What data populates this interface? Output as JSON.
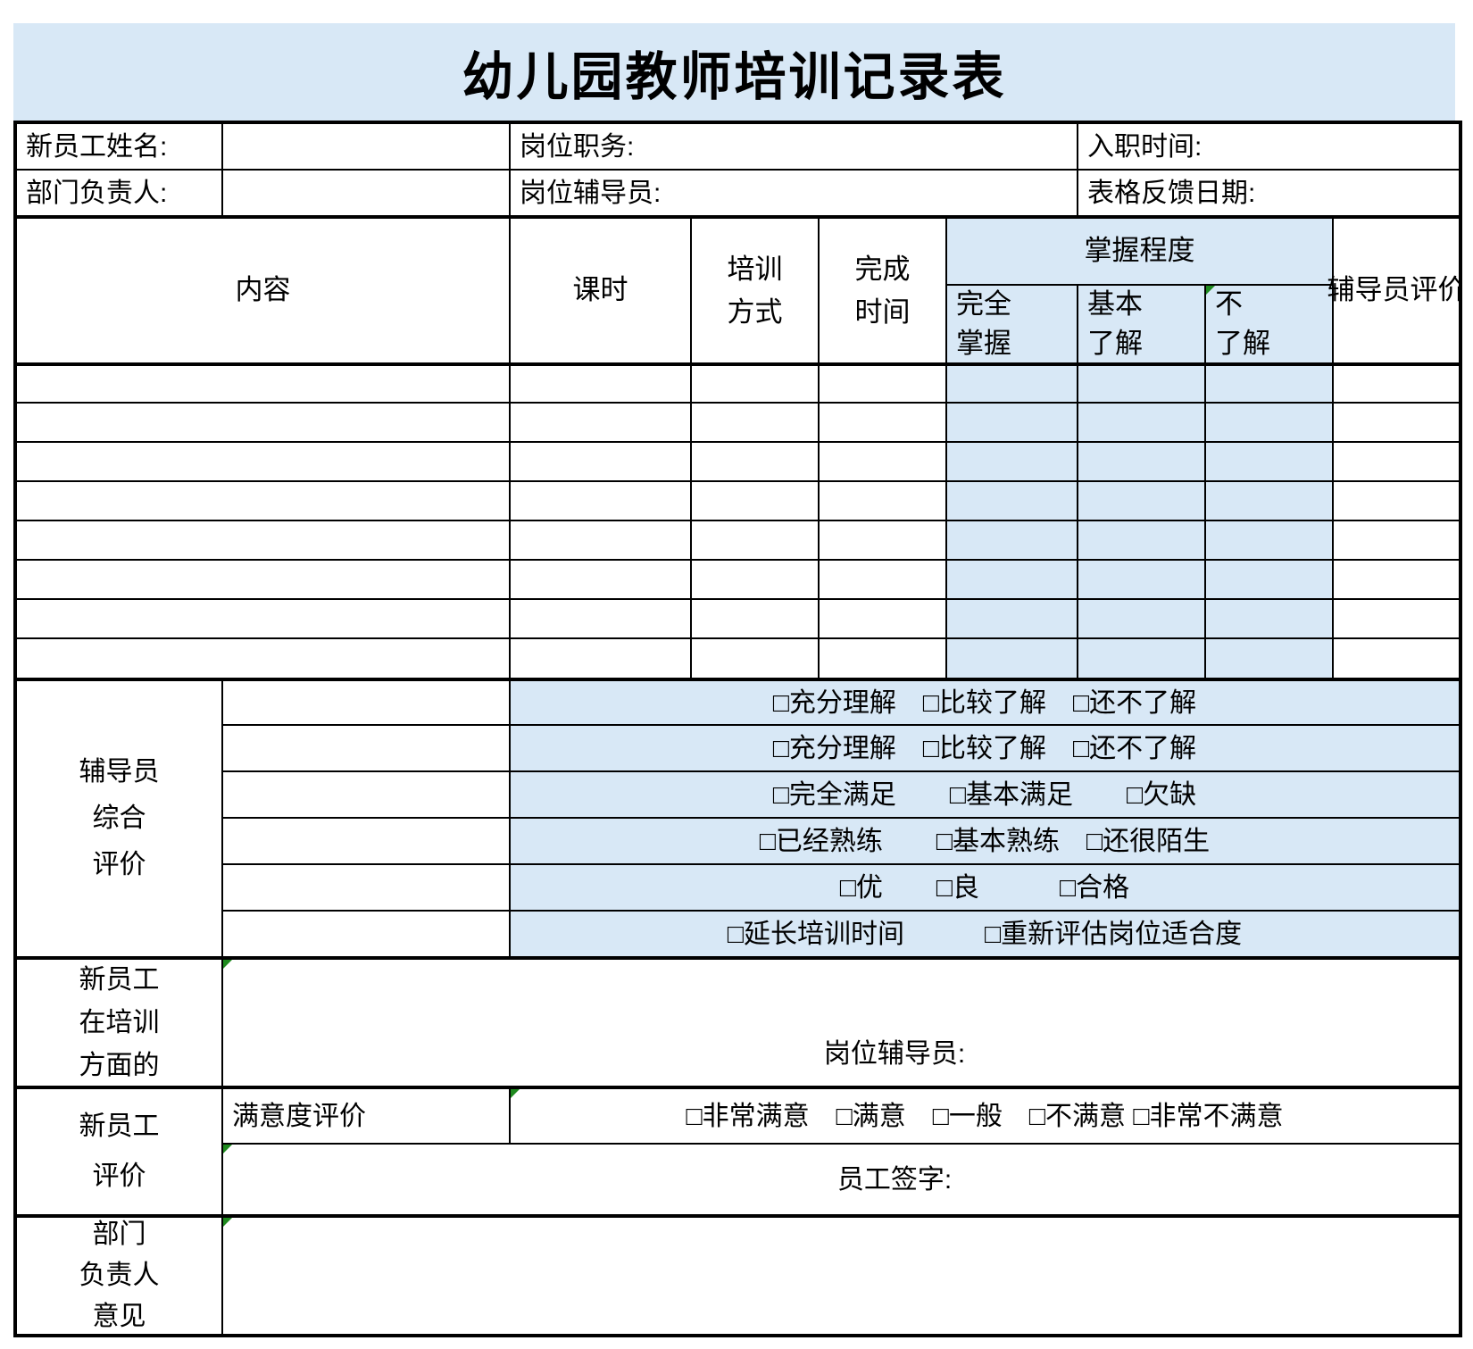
{
  "title": "幼儿园教师培训记录表",
  "colors": {
    "band_blue": "#d8e8f6",
    "cell_blue": "#d8e8f6",
    "border": "#000000",
    "marker_green": "#1f8a1f"
  },
  "info_rows": [
    {
      "fields": [
        {
          "label": "新员工姓名:",
          "value": ""
        },
        {
          "label": "岗位职务:",
          "value": ""
        },
        {
          "label": "入职时间:",
          "value": ""
        }
      ]
    },
    {
      "fields": [
        {
          "label": "部门负责人:",
          "value": ""
        },
        {
          "label": "岗位辅导员:",
          "value": ""
        },
        {
          "label": "表格反馈日期:",
          "value": ""
        }
      ]
    }
  ],
  "table_header": {
    "content": "内容",
    "hours": "课时",
    "method": "培训\n方式",
    "finish": "完成\n时间",
    "mastery": "掌握程度",
    "mastery_full": "完全\n掌握",
    "mastery_basic": "基本\n了解",
    "mastery_none": "不\n了解",
    "mentor_eval": "辅导员评价"
  },
  "body": {
    "empty_row_count": 8
  },
  "coach_eval": {
    "label": "辅导员\n综合\n评价",
    "option_rows": [
      "□充分理解　□比较了解　□还不了解",
      "□充分理解　□比较了解　□还不了解",
      "□完全满足　　□基本满足　　□欠缺",
      "□已经熟练　　□基本熟练　□还很陌生",
      "□优　　□良　　　□合格",
      "□延长培训时间　　　□重新评估岗位适合度"
    ]
  },
  "training_feedback": {
    "label": "新员工\n在培训\n方面的",
    "mentor_sign_label": "岗位辅导员:"
  },
  "employee_eval": {
    "label": "新员工\n评价",
    "satisfaction_label": "满意度评价",
    "satisfaction_options": "□非常满意　□满意　□一般　□不满意 □非常不满意",
    "signature_label": "员工签字:"
  },
  "dept_opinion": {
    "label": "部门\n负责人\n意见"
  }
}
